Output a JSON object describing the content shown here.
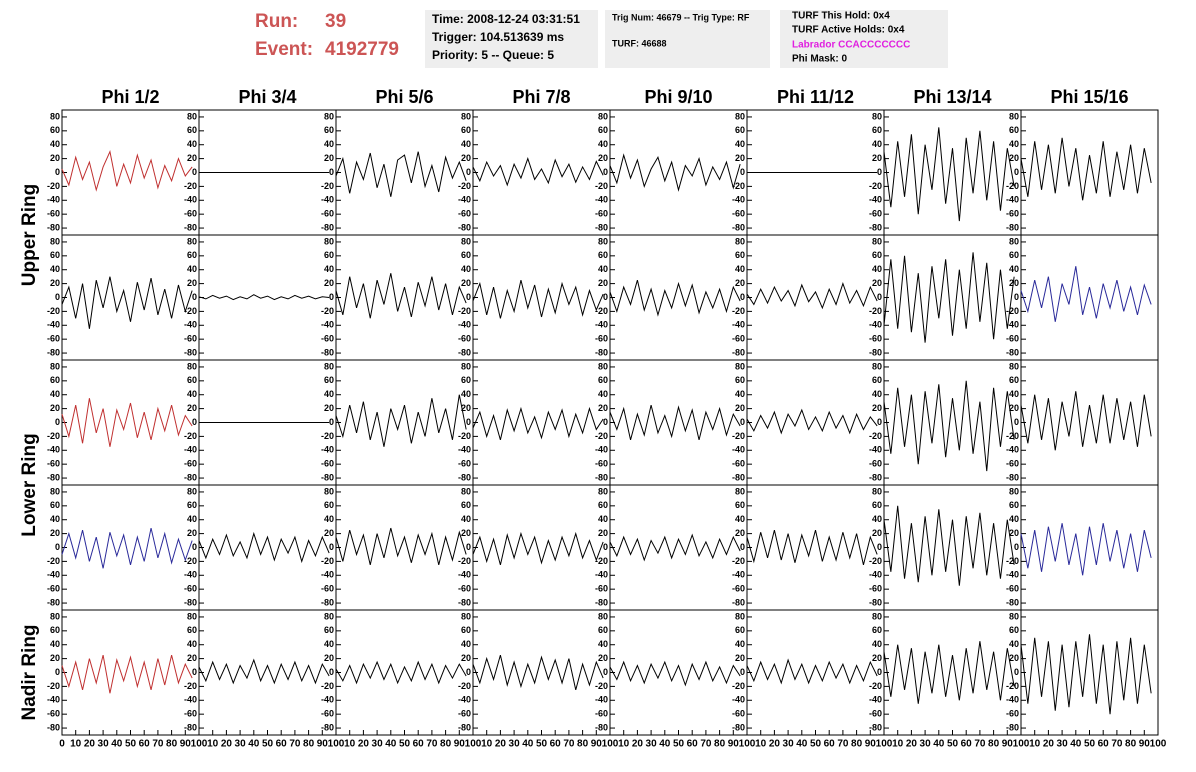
{
  "header": {
    "run_label": "Run:",
    "run": "39",
    "event_label": "Event:",
    "event": "4192779",
    "time": "Time: 2008-12-24 03:31:51",
    "trigger": "Trigger: 104.513639 ms",
    "priority": "Priority: 5 -- Queue: 5",
    "trig_num": "Trig Num: 46679 -- Trig Type: RF",
    "turf": "TURF: 46688",
    "turf_hold": "TURF This Hold: 0x4",
    "turf_active": "TURF Active Holds: 0x4",
    "labrador": "Labrador CCACCCCCCC",
    "phi_mask": "Phi Mask: 0"
  },
  "chart_data": {
    "type": "line",
    "columns": [
      "Phi 1/2",
      "Phi 3/4",
      "Phi 5/6",
      "Phi 7/8",
      "Phi 9/10",
      "Phi 11/12",
      "Phi 13/14",
      "Phi 15/16"
    ],
    "ring_labels": [
      "Upper Ring",
      "Lower Ring",
      "Nadir Ring"
    ],
    "xlim": [
      0,
      100
    ],
    "xticks": [
      0,
      10,
      20,
      30,
      40,
      50,
      60,
      70,
      80,
      90,
      100
    ],
    "ylim": [
      -90,
      90
    ],
    "yticks": [
      -80,
      -60,
      -40,
      -20,
      0,
      20,
      40,
      60,
      80
    ],
    "x": [
      0,
      5,
      10,
      15,
      20,
      25,
      30,
      35,
      40,
      45,
      50,
      55,
      60,
      65,
      70,
      75,
      80,
      85,
      90,
      95
    ],
    "panels": [
      [
        {
          "color": "#c03030",
          "values": [
            5,
            -18,
            22,
            -10,
            15,
            -25,
            8,
            30,
            -20,
            12,
            -15,
            25,
            -8,
            18,
            -22,
            10,
            -12,
            20,
            -5,
            8
          ]
        },
        {
          "color": "#000000",
          "values": [
            0,
            0,
            0,
            0,
            0,
            0,
            0,
            0,
            0,
            0,
            0,
            0,
            0,
            0,
            0,
            0,
            0,
            0,
            0,
            0
          ]
        },
        {
          "color": "#000000",
          "values": [
            -5,
            20,
            -30,
            15,
            -10,
            28,
            -22,
            12,
            -35,
            18,
            25,
            -15,
            30,
            -20,
            10,
            -28,
            22,
            -8,
            15,
            -12
          ]
        },
        {
          "color": "#000000",
          "values": [
            8,
            -12,
            15,
            -5,
            10,
            -18,
            12,
            -8,
            20,
            -10,
            5,
            -15,
            18,
            -6,
            12,
            -14,
            8,
            -10,
            16,
            -4
          ]
        },
        {
          "color": "#000000",
          "values": [
            10,
            -15,
            25,
            -8,
            18,
            -20,
            5,
            22,
            -12,
            15,
            -25,
            10,
            -5,
            20,
            -18,
            8,
            -10,
            15,
            -22,
            12
          ]
        },
        {
          "color": "#000000",
          "values": [
            0,
            0,
            0,
            0,
            0,
            0,
            0,
            0,
            0,
            0,
            0,
            0,
            0,
            0,
            0,
            0,
            0,
            0,
            0,
            0
          ]
        },
        {
          "color": "#000000",
          "values": [
            30,
            -50,
            45,
            -35,
            55,
            -60,
            40,
            -25,
            65,
            -45,
            35,
            -70,
            50,
            -30,
            60,
            -40,
            45,
            -55,
            35,
            -20
          ]
        },
        {
          "color": "#000000",
          "values": [
            20,
            -35,
            45,
            -25,
            40,
            -30,
            50,
            -20,
            35,
            -40,
            25,
            -30,
            45,
            -35,
            30,
            -25,
            40,
            -30,
            35,
            -15
          ]
        }
      ],
      [
        {
          "color": "#000000",
          "values": [
            -10,
            15,
            -30,
            20,
            -45,
            25,
            -15,
            30,
            -20,
            10,
            -35,
            22,
            -18,
            28,
            -25,
            12,
            -30,
            18,
            -20,
            10
          ]
        },
        {
          "color": "#000000",
          "values": [
            1,
            -2,
            3,
            -1,
            2,
            -3,
            1,
            -2,
            4,
            -1,
            2,
            -3,
            1,
            -2,
            3,
            -1,
            2,
            -2,
            1,
            0
          ]
        },
        {
          "color": "#000000",
          "values": [
            10,
            -25,
            30,
            -15,
            20,
            -30,
            25,
            -10,
            35,
            -20,
            15,
            -28,
            22,
            -12,
            30,
            -18,
            20,
            -25,
            15,
            -8
          ]
        },
        {
          "color": "#000000",
          "values": [
            -5,
            20,
            -25,
            15,
            -30,
            10,
            -20,
            25,
            -15,
            18,
            -28,
            12,
            -22,
            20,
            -10,
            15,
            -25,
            10,
            -18,
            5
          ]
        },
        {
          "color": "#000000",
          "values": [
            8,
            -20,
            15,
            -10,
            25,
            -18,
            12,
            -25,
            10,
            -15,
            20,
            -12,
            18,
            -22,
            8,
            -15,
            12,
            -20,
            15,
            -5
          ]
        },
        {
          "color": "#000000",
          "values": [
            5,
            -10,
            12,
            -8,
            15,
            -5,
            10,
            -12,
            18,
            -6,
            8,
            -15,
            12,
            -10,
            20,
            -8,
            10,
            -12,
            15,
            -5
          ]
        },
        {
          "color": "#000000",
          "values": [
            -40,
            55,
            -45,
            60,
            -50,
            35,
            -65,
            45,
            -30,
            55,
            -55,
            40,
            -45,
            65,
            -35,
            50,
            -60,
            40,
            -45,
            30
          ]
        },
        {
          "color": "#2a2a9a",
          "values": [
            10,
            -20,
            25,
            -15,
            30,
            -35,
            20,
            -10,
            45,
            -25,
            15,
            -30,
            20,
            -15,
            25,
            -20,
            15,
            -25,
            18,
            -10
          ]
        }
      ],
      [
        {
          "color": "#c03030",
          "values": [
            12,
            -20,
            25,
            -30,
            35,
            -15,
            20,
            -35,
            18,
            -10,
            28,
            -22,
            15,
            -25,
            20,
            -12,
            25,
            -18,
            10,
            -5
          ]
        },
        {
          "color": "#000000",
          "values": [
            0,
            0,
            0,
            0,
            0,
            0,
            0,
            0,
            0,
            0,
            0,
            0,
            0,
            0,
            0,
            0,
            0,
            0,
            0,
            0
          ]
        },
        {
          "color": "#000000",
          "values": [
            10,
            -20,
            25,
            -15,
            30,
            -25,
            15,
            -35,
            20,
            -10,
            25,
            -30,
            15,
            -20,
            35,
            -15,
            20,
            -25,
            40,
            -10
          ]
        },
        {
          "color": "#000000",
          "values": [
            -8,
            15,
            -20,
            10,
            -25,
            18,
            -12,
            20,
            -15,
            8,
            -22,
            15,
            -10,
            18,
            -20,
            12,
            -15,
            20,
            -10,
            5
          ]
        },
        {
          "color": "#000000",
          "values": [
            15,
            -10,
            20,
            -25,
            12,
            -18,
            25,
            -15,
            10,
            -20,
            22,
            -12,
            18,
            -25,
            15,
            -10,
            20,
            -18,
            12,
            -5
          ]
        },
        {
          "color": "#000000",
          "values": [
            5,
            -12,
            10,
            -8,
            15,
            -15,
            12,
            -5,
            18,
            -10,
            8,
            -12,
            15,
            -8,
            10,
            -15,
            12,
            -10,
            8,
            -5
          ]
        },
        {
          "color": "#000000",
          "values": [
            30,
            -45,
            50,
            -35,
            40,
            -60,
            45,
            -30,
            55,
            -50,
            35,
            -40,
            60,
            -45,
            30,
            -70,
            50,
            -35,
            45,
            -25
          ]
        },
        {
          "color": "#000000",
          "values": [
            25,
            -30,
            40,
            -25,
            35,
            -40,
            30,
            -20,
            45,
            -35,
            25,
            -30,
            40,
            -30,
            35,
            -25,
            30,
            -35,
            40,
            -20
          ]
        }
      ],
      [
        {
          "color": "#2a2a9a",
          "values": [
            -10,
            20,
            -15,
            25,
            -20,
            15,
            -30,
            22,
            -12,
            18,
            -25,
            15,
            -20,
            28,
            -15,
            20,
            -22,
            12,
            -18,
            10
          ]
        },
        {
          "color": "#000000",
          "values": [
            10,
            -15,
            12,
            -10,
            18,
            -12,
            8,
            -15,
            20,
            -10,
            15,
            -18,
            12,
            -8,
            15,
            -20,
            10,
            -12,
            15,
            -8
          ]
        },
        {
          "color": "#000000",
          "values": [
            15,
            -20,
            25,
            -10,
            18,
            -25,
            20,
            -15,
            28,
            -12,
            15,
            -22,
            18,
            -10,
            20,
            -25,
            15,
            -18,
            22,
            -10
          ]
        },
        {
          "color": "#000000",
          "values": [
            -10,
            15,
            -20,
            12,
            -25,
            18,
            -15,
            20,
            -10,
            15,
            -22,
            10,
            -18,
            15,
            -12,
            20,
            -15,
            10,
            -18,
            8
          ]
        },
        {
          "color": "#000000",
          "values": [
            8,
            -12,
            15,
            -10,
            12,
            -18,
            10,
            -8,
            15,
            -15,
            12,
            -10,
            18,
            -12,
            8,
            -15,
            12,
            -10,
            15,
            -5
          ]
        },
        {
          "color": "#000000",
          "values": [
            15,
            -20,
            22,
            -15,
            25,
            -18,
            20,
            -22,
            18,
            -12,
            25,
            -20,
            15,
            -18,
            22,
            -15,
            20,
            -25,
            15,
            -10
          ]
        },
        {
          "color": "#000000",
          "values": [
            40,
            -35,
            60,
            -45,
            35,
            -50,
            45,
            -40,
            55,
            -35,
            40,
            -55,
            45,
            -30,
            50,
            -40,
            35,
            -45,
            40,
            -25
          ]
        },
        {
          "color": "#2a2a9a",
          "values": [
            20,
            -30,
            25,
            -35,
            30,
            -20,
            35,
            -25,
            20,
            -40,
            30,
            -25,
            35,
            -20,
            25,
            -30,
            20,
            -35,
            25,
            -15
          ]
        }
      ],
      [
        {
          "color": "#c03030",
          "values": [
            10,
            -20,
            15,
            -25,
            20,
            -15,
            25,
            -30,
            18,
            -12,
            22,
            -20,
            15,
            -25,
            20,
            -18,
            25,
            -15,
            12,
            -8
          ]
        },
        {
          "color": "#000000",
          "values": [
            8,
            -12,
            15,
            -10,
            12,
            -15,
            10,
            -8,
            18,
            -12,
            10,
            -15,
            12,
            -10,
            15,
            -12,
            10,
            -15,
            12,
            -5
          ]
        },
        {
          "color": "#000000",
          "values": [
            5,
            -12,
            10,
            -15,
            12,
            -8,
            15,
            -10,
            12,
            -15,
            8,
            -12,
            15,
            -10,
            12,
            -15,
            10,
            -8,
            12,
            -5
          ]
        },
        {
          "color": "#000000",
          "values": [
            12,
            -15,
            20,
            -10,
            25,
            -18,
            15,
            -20,
            12,
            -15,
            22,
            -10,
            18,
            -15,
            20,
            -25,
            12,
            -18,
            15,
            -8
          ]
        },
        {
          "color": "#000000",
          "values": [
            8,
            -10,
            15,
            -12,
            10,
            -15,
            12,
            -8,
            15,
            -12,
            10,
            -18,
            12,
            -10,
            15,
            -12,
            8,
            -15,
            10,
            -5
          ]
        },
        {
          "color": "#000000",
          "values": [
            10,
            -12,
            15,
            -10,
            12,
            -15,
            18,
            -10,
            12,
            -15,
            10,
            -12,
            15,
            -8,
            12,
            -15,
            10,
            -12,
            15,
            -5
          ]
        },
        {
          "color": "#000000",
          "values": [
            30,
            -35,
            40,
            -25,
            35,
            -45,
            30,
            -30,
            40,
            -35,
            25,
            -40,
            35,
            -30,
            45,
            -25,
            30,
            -40,
            35,
            -20
          ]
        },
        {
          "color": "#000000",
          "values": [
            40,
            -45,
            50,
            -35,
            45,
            -55,
            40,
            -50,
            45,
            -35,
            55,
            -45,
            40,
            -60,
            45,
            -40,
            50,
            -45,
            40,
            -30
          ]
        }
      ]
    ]
  }
}
